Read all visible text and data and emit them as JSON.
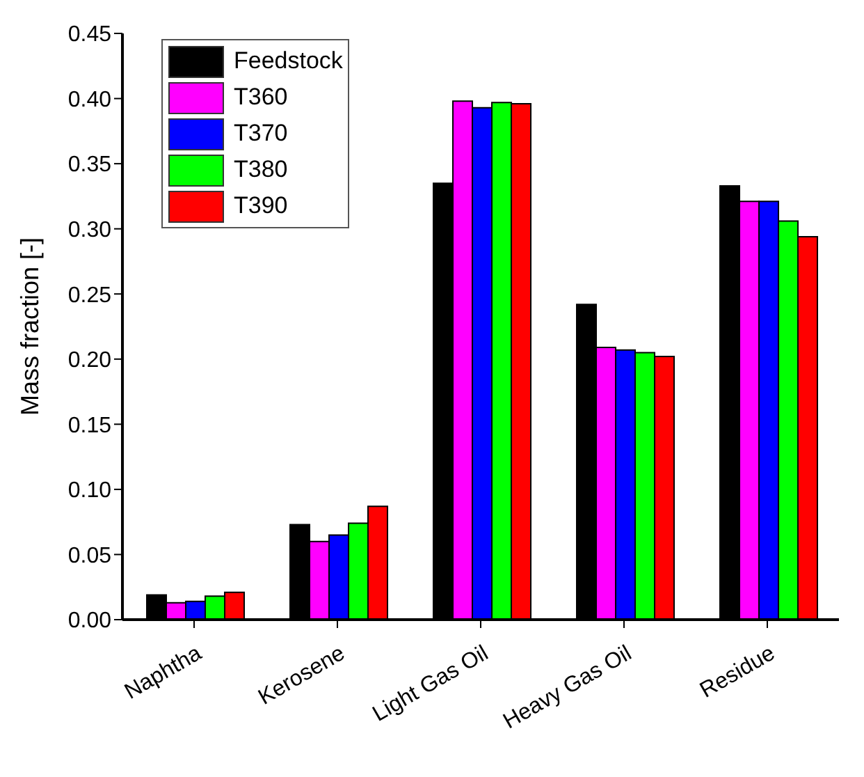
{
  "chart_data": {
    "type": "bar",
    "ylabel": "Mass fraction [-]",
    "categories": [
      "Naphtha",
      "Kerosene",
      "Light Gas Oil",
      "Heavy Gas Oil",
      "Residue"
    ],
    "series": [
      {
        "name": "Feedstock",
        "color": "#000000",
        "values": [
          0.019,
          0.073,
          0.335,
          0.242,
          0.333
        ]
      },
      {
        "name": "T360",
        "color": "#ff00ff",
        "values": [
          0.013,
          0.06,
          0.398,
          0.209,
          0.321
        ]
      },
      {
        "name": "T370",
        "color": "#0000ff",
        "values": [
          0.014,
          0.065,
          0.393,
          0.207,
          0.321
        ]
      },
      {
        "name": "T380",
        "color": "#00ff00",
        "values": [
          0.018,
          0.074,
          0.397,
          0.205,
          0.306
        ]
      },
      {
        "name": "T390",
        "color": "#ff0000",
        "values": [
          0.021,
          0.087,
          0.396,
          0.202,
          0.294
        ]
      }
    ],
    "ylim": [
      0,
      0.45
    ],
    "yticks": [
      {
        "value": 0,
        "label": "0.00"
      },
      {
        "value": 0.05,
        "label": "0.05"
      },
      {
        "value": 0.1,
        "label": "0.10"
      },
      {
        "value": 0.15,
        "label": "0.15"
      },
      {
        "value": 0.2,
        "label": "0.20"
      },
      {
        "value": 0.25,
        "label": "0.25"
      },
      {
        "value": 0.3,
        "label": "0.30"
      },
      {
        "value": 0.35,
        "label": "0.35"
      },
      {
        "value": 0.4,
        "label": "0.40"
      },
      {
        "value": 0.45,
        "label": "0.45"
      }
    ],
    "grid": false,
    "legend": "top left"
  }
}
